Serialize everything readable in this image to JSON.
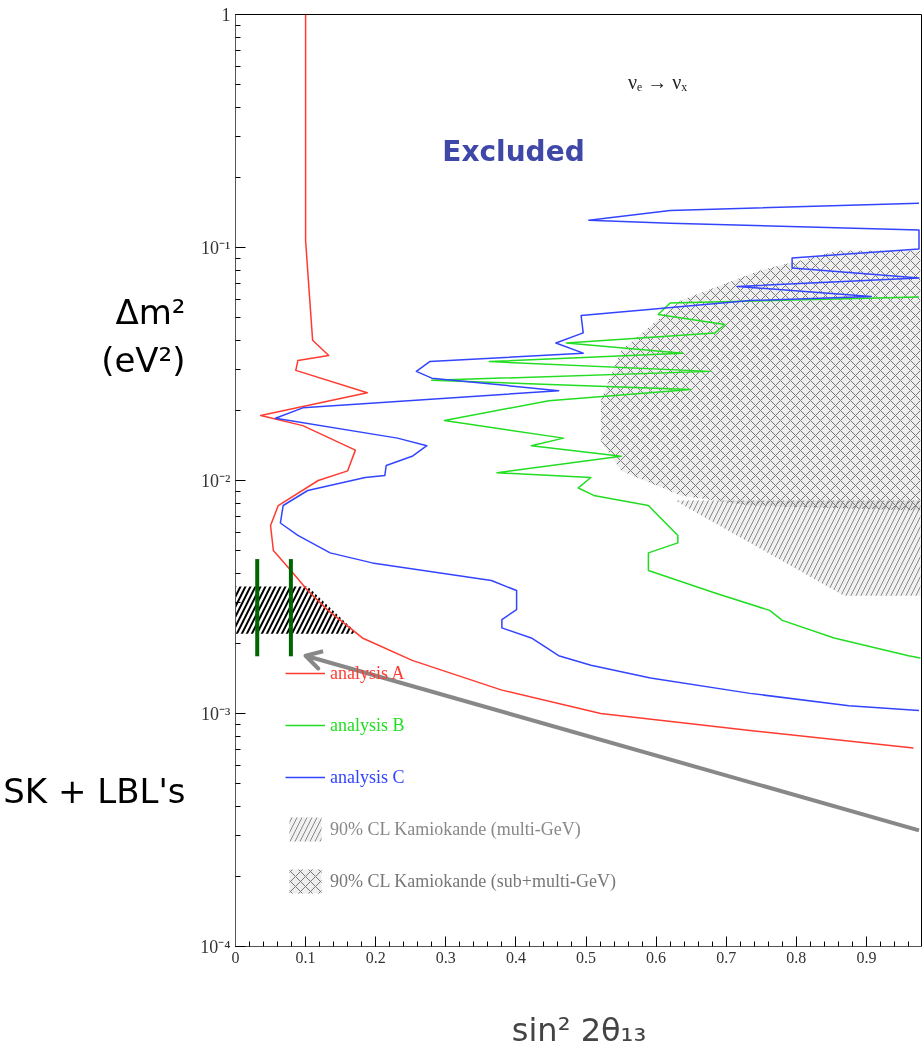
{
  "chart_data": {
    "type": "line",
    "xlabel": "sin² 2θ₁₃",
    "ylabel": "Δm²\n(eV²)",
    "log": "y",
    "xlim": [
      0,
      0.98
    ],
    "ylim": [
      0.0001,
      1
    ],
    "xticks": [
      0,
      0.1,
      0.2,
      0.3,
      0.4,
      0.5,
      0.6,
      0.7,
      0.8,
      0.9
    ],
    "yticks": [
      {
        "value": 0.0001,
        "label": "10⁻⁴"
      },
      {
        "value": 0.001,
        "label": "10⁻³"
      },
      {
        "value": 0.01,
        "label": "10⁻²"
      },
      {
        "value": 0.1,
        "label": "10⁻¹"
      },
      1
    ],
    "grid": false,
    "legend": "bottom left",
    "annotations": [
      "Excluded",
      "νₑ → νₓ",
      "SK + LBL's"
    ],
    "series": [
      {
        "name": "analysis A",
        "color": "#ff3b30",
        "x": [
          0.1,
          0.1,
          0.11,
          0.133,
          0.089,
          0.086,
          0.188,
          0.036,
          0.096,
          0.171,
          0.16,
          0.118,
          0.061,
          0.05,
          0.054,
          0.079,
          0.103,
          0.132,
          0.181,
          0.252,
          0.38,
          0.521,
          0.734,
          0.967
        ],
        "values": [
          1,
          0.107,
          0.04,
          0.0344,
          0.0327,
          0.0297,
          0.0238,
          0.019,
          0.0172,
          0.0135,
          0.011,
          0.01,
          0.00781,
          0.00641,
          0.00501,
          0.00411,
          0.00337,
          0.00277,
          0.00211,
          0.00169,
          0.00126,
          0.001,
          0.000845,
          0.000711
        ]
      },
      {
        "name": "analysis B",
        "color": "#22dd22",
        "x": [
          0.975,
          0.62,
          0.603,
          0.698,
          0.684,
          0.472,
          0.638,
          0.362,
          0.677,
          0.28,
          0.649,
          0.447,
          0.298,
          0.468,
          0.422,
          0.55,
          0.373,
          0.507,
          0.489,
          0.511,
          0.589,
          0.631,
          0.631,
          0.589,
          0.589,
          0.684,
          0.762,
          0.78,
          0.854,
          0.96,
          0.977
        ],
        "values": [
          0.0613,
          0.0578,
          0.0516,
          0.0467,
          0.043,
          0.0389,
          0.0352,
          0.0324,
          0.0294,
          0.0269,
          0.0246,
          0.022,
          0.0181,
          0.0152,
          0.0141,
          0.0127,
          0.0108,
          0.0103,
          0.00929,
          0.00863,
          0.00781,
          0.00581,
          0.0054,
          0.00489,
          0.00411,
          0.00329,
          0.00277,
          0.00251,
          0.00211,
          0.00177,
          0.00173
        ]
      },
      {
        "name": "analysis C",
        "color": "#3344ff",
        "x": [
          0.975,
          0.62,
          0.504,
          0.62,
          0.975,
          0.975,
          0.794,
          0.794,
          0.975,
          0.716,
          0.907,
          0.734,
          0.493,
          0.496,
          0.457,
          0.496,
          0.277,
          0.258,
          0.28,
          0.461,
          0.096,
          0.057,
          0.231,
          0.273,
          0.252,
          0.215,
          0.213,
          0.185,
          0.103,
          0.068,
          0.064,
          0.089,
          0.135,
          0.195,
          0.365,
          0.401,
          0.401,
          0.38,
          0.38,
          0.422,
          0.461,
          0.507,
          0.592,
          0.734,
          0.875,
          0.975
        ],
        "values": [
          0.155,
          0.144,
          0.131,
          0.127,
          0.119,
          0.0986,
          0.0902,
          0.0817,
          0.074,
          0.068,
          0.0616,
          0.0592,
          0.0511,
          0.043,
          0.0389,
          0.0352,
          0.0324,
          0.0294,
          0.0275,
          0.0243,
          0.0205,
          0.0185,
          0.0152,
          0.0141,
          0.0127,
          0.0116,
          0.0105,
          0.0103,
          0.00906,
          0.00781,
          0.00657,
          0.00581,
          0.00489,
          0.00443,
          0.00372,
          0.00337,
          0.00279,
          0.00253,
          0.00233,
          0.00211,
          0.00177,
          0.00161,
          0.00142,
          0.00122,
          0.00108,
          0.00103
        ]
      },
      {
        "name": "90% CL Kamiokande (multi-GeV)",
        "type": "area",
        "color": "#888888",
        "x": [
          0.627,
          0.977,
          0.977,
          0.868
        ],
        "values": [
          0.0082,
          0.0082,
          0.0032,
          0.0032
        ]
      },
      {
        "name": "90% CL Kamiokande (sub+multi-GeV)",
        "type": "area",
        "color": "#777777",
        "x": [
          0.977,
          0.946,
          0.861,
          0.748,
          0.635,
          0.55,
          0.521,
          0.521,
          0.55,
          0.635,
          0.734,
          0.977
        ],
        "values": [
          0.097,
          0.097,
          0.097,
          0.0796,
          0.0593,
          0.0361,
          0.022,
          0.0148,
          0.011,
          0.00863,
          0.00781,
          0.00743
        ]
      },
      {
        "type": "area",
        "color": "#000000",
        "x": [
          0,
          0.103,
          0.174,
          0
        ],
        "values": [
          0.00351,
          0.00351,
          0.0022,
          0.0022
        ]
      },
      {
        "type": "line",
        "color": "#006400",
        "x": [
          0.031,
          0.031
        ],
        "values": [
          0.0046,
          0.00176
        ]
      },
      {
        "type": "line",
        "color": "#006400",
        "x": [
          0.079,
          0.079
        ],
        "values": [
          0.0046,
          0.00176
        ]
      },
      {
        "type": "line",
        "color": "#888888",
        "x": [
          0.975,
          0.1,
          0.118,
          0.1,
          0.125
        ],
        "values": [
          0.000315,
          0.00177,
          0.00156,
          0.00177,
          0.00185
        ]
      }
    ]
  }
}
